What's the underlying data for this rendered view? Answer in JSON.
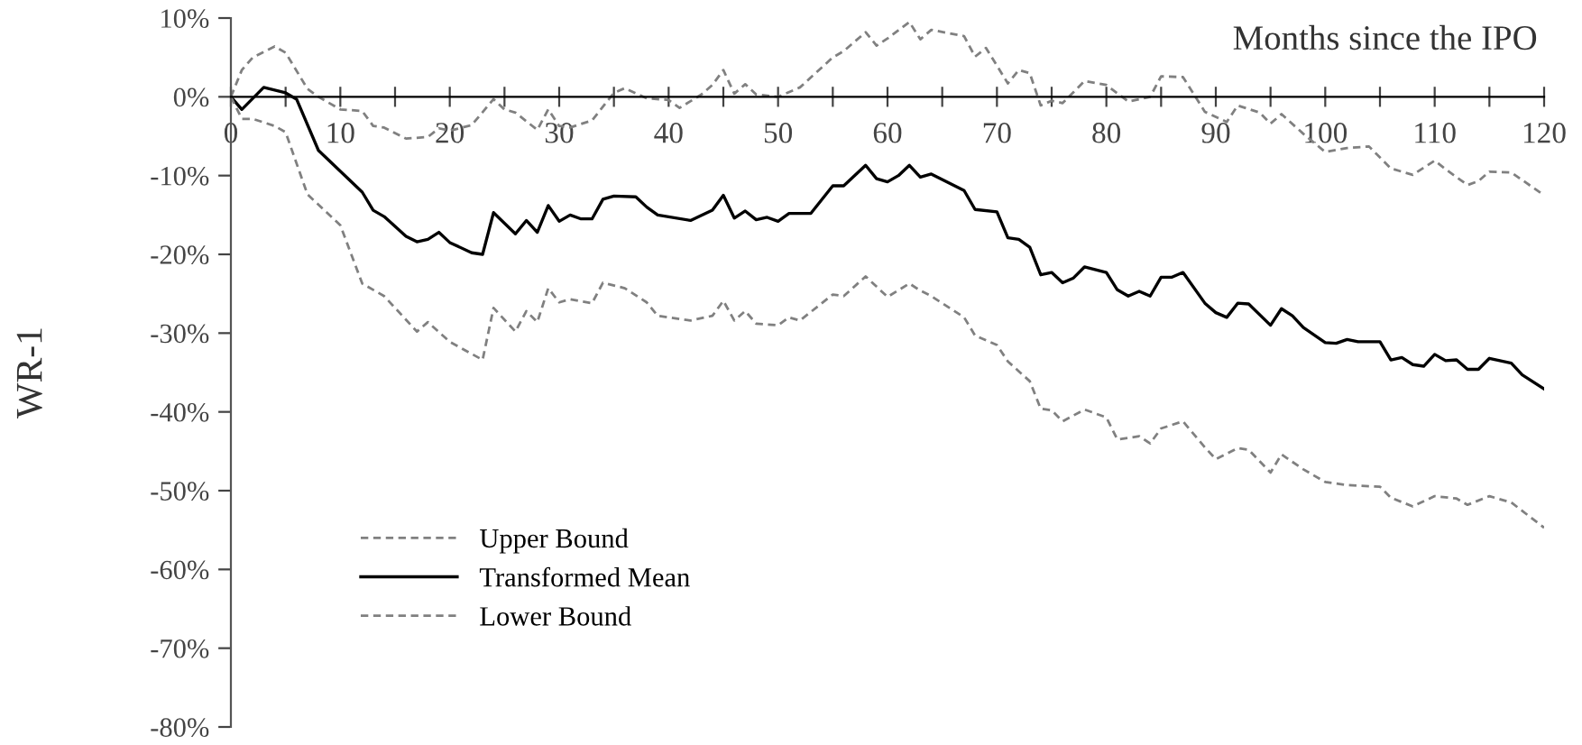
{
  "chart_data": {
    "type": "line",
    "xlabel": "Months since the IPO",
    "ylabel": "WR-1",
    "xlim": [
      0,
      120
    ],
    "ylim": [
      -80,
      10
    ],
    "xticks": [
      0,
      {
        "value": 5,
        "label": null
      },
      10,
      {
        "value": 15,
        "label": null
      },
      20,
      {
        "value": 25,
        "label": null
      },
      30,
      {
        "value": 35,
        "label": null
      },
      40,
      {
        "value": 45,
        "label": null
      },
      50,
      {
        "value": 55,
        "label": null
      },
      60,
      {
        "value": 65,
        "label": null
      },
      70,
      {
        "value": 75,
        "label": null
      },
      80,
      {
        "value": 85,
        "label": null
      },
      90,
      {
        "value": 95,
        "label": null
      },
      100,
      {
        "value": 105,
        "label": null
      },
      110,
      {
        "value": 115,
        "label": null
      },
      120
    ],
    "yticks": [
      {
        "value": 10,
        "label": "10%"
      },
      {
        "value": 0,
        "label": "0%"
      },
      {
        "value": -10,
        "label": "-10%"
      },
      {
        "value": -20,
        "label": "-20%"
      },
      {
        "value": -30,
        "label": "-30%"
      },
      {
        "value": -40,
        "label": "-40%"
      },
      {
        "value": -50,
        "label": "-50%"
      },
      {
        "value": -60,
        "label": "-60%"
      },
      {
        "value": -70,
        "label": "-70%"
      },
      {
        "value": -80,
        "label": "-80%"
      }
    ],
    "grid": false,
    "legend": "bottom left",
    "marker": "none",
    "series": [
      {
        "name": "Upper Bound",
        "color": "#808080",
        "line_style": "dashed",
        "x": [
          0,
          1,
          2,
          4,
          5,
          7,
          8,
          10,
          12,
          13,
          14,
          16,
          18,
          19,
          20,
          22,
          24,
          25,
          26,
          28,
          29,
          30,
          31,
          33,
          35,
          36,
          38,
          40,
          41,
          43,
          44,
          45,
          46,
          47,
          48,
          50,
          52,
          55,
          56,
          58,
          59,
          60,
          62,
          63,
          64,
          67,
          68,
          69,
          71,
          72,
          73,
          74,
          75,
          76,
          78,
          80,
          82,
          84,
          85,
          87,
          89,
          91,
          92,
          94,
          95,
          96,
          98,
          100,
          102,
          104,
          106,
          108,
          110,
          111,
          113,
          114,
          115,
          117,
          120
        ],
        "values": [
          0,
          3.4,
          5,
          6.4,
          5.6,
          1,
          0,
          -1.6,
          -1.8,
          -3.7,
          -3.9,
          -5.3,
          -5.1,
          -4,
          -4.3,
          -3.6,
          -0.3,
          -1.6,
          -2,
          -4.2,
          -1.6,
          -3.7,
          -3.9,
          -3,
          0.5,
          1.1,
          -0.2,
          -0.4,
          -1.4,
          0.3,
          1.5,
          3.4,
          0.4,
          1.6,
          0.3,
          0,
          1.2,
          5,
          5.8,
          8.2,
          6.5,
          7.4,
          9.5,
          7.3,
          8.5,
          7.7,
          5.1,
          6.2,
          1.7,
          3.4,
          3,
          -1.1,
          -0.5,
          -0.8,
          2,
          1.5,
          -0.6,
          0,
          2.6,
          2.5,
          -1.9,
          -3.2,
          -1.1,
          -2,
          -3.4,
          -2.2,
          -4.7,
          -7,
          -6.5,
          -6.3,
          -9.1,
          -9.9,
          -8.1,
          -9.2,
          -11.2,
          -10.7,
          -9.5,
          -9.6,
          -12.5
        ]
      },
      {
        "name": "Transformed Mean",
        "color": "#000000",
        "line_style": "solid",
        "x": [
          0,
          1,
          3,
          5,
          6,
          8,
          12,
          13,
          14,
          16,
          17,
          18,
          19,
          20,
          22,
          23,
          24,
          26,
          27,
          28,
          29,
          30,
          31,
          32,
          33,
          34,
          35,
          37,
          38,
          39,
          42,
          44,
          45,
          46,
          47,
          48,
          49,
          50,
          51,
          53,
          55,
          56,
          58,
          59,
          60,
          61,
          62,
          63,
          64,
          67,
          68,
          70,
          71,
          72,
          73,
          74,
          75,
          76,
          77,
          78,
          80,
          81,
          82,
          83,
          84,
          85,
          86,
          87,
          89,
          90,
          91,
          92,
          93,
          95,
          96,
          97,
          98,
          100,
          101,
          102,
          103,
          105,
          106,
          107,
          108,
          109,
          110,
          111,
          112,
          113,
          114,
          115,
          117,
          118,
          120
        ],
        "values": [
          0,
          -1.6,
          1.2,
          0.5,
          -0.3,
          -6.8,
          -12.1,
          -14.4,
          -15.2,
          -17.7,
          -18.4,
          -18.1,
          -17.2,
          -18.5,
          -19.8,
          -20,
          -14.7,
          -17.4,
          -15.7,
          -17.2,
          -13.8,
          -15.8,
          -15,
          -15.5,
          -15.5,
          -13,
          -12.6,
          -12.7,
          -14,
          -15,
          -15.7,
          -14.4,
          -12.5,
          -15.4,
          -14.5,
          -15.6,
          -15.3,
          -15.8,
          -14.8,
          -14.8,
          -11.3,
          -11.3,
          -8.7,
          -10.4,
          -10.8,
          -10,
          -8.7,
          -10.2,
          -9.8,
          -11.9,
          -14.3,
          -14.6,
          -17.9,
          -18.1,
          -19.1,
          -22.6,
          -22.3,
          -23.6,
          -23,
          -21.6,
          -22.3,
          -24.5,
          -25.3,
          -24.7,
          -25.3,
          -22.9,
          -22.9,
          -22.3,
          -26.2,
          -27.4,
          -28,
          -26.2,
          -26.3,
          -29,
          -26.9,
          -27.8,
          -29.3,
          -31.2,
          -31.3,
          -30.8,
          -31.1,
          -31.1,
          -33.4,
          -33.1,
          -34,
          -34.2,
          -32.7,
          -33.5,
          -33.4,
          -34.6,
          -34.6,
          -33.2,
          -33.8,
          -35.3,
          -37.1
        ]
      },
      {
        "name": "Lower Bound",
        "color": "#808080",
        "line_style": "dashed",
        "x": [
          0,
          1,
          2,
          4,
          5,
          7,
          10,
          12,
          14,
          17,
          18,
          20,
          23,
          24,
          26,
          27,
          28,
          29,
          30,
          31,
          33,
          34,
          36,
          38,
          39,
          42,
          44,
          45,
          46,
          47,
          48,
          50,
          51,
          52,
          55,
          56,
          58,
          60,
          62,
          63,
          64,
          67,
          68,
          70,
          71,
          73,
          74,
          75,
          76,
          78,
          80,
          81,
          83,
          84,
          85,
          87,
          89,
          90,
          92,
          93,
          95,
          96,
          98,
          100,
          102,
          105,
          106,
          108,
          110,
          112,
          113,
          115,
          117,
          120
        ],
        "values": [
          0,
          -2.8,
          -2.8,
          -3.7,
          -4.5,
          -12.4,
          -16.3,
          -23.7,
          -25.3,
          -29.8,
          -28.6,
          -31.1,
          -33.4,
          -26.8,
          -29.8,
          -27.2,
          -28.6,
          -24.3,
          -26.1,
          -25.7,
          -26.2,
          -23.6,
          -24.3,
          -26.1,
          -27.8,
          -28.4,
          -27.8,
          -25.9,
          -28.4,
          -27.2,
          -28.8,
          -29,
          -28,
          -28.4,
          -25.1,
          -25.3,
          -22.8,
          -25.4,
          -23.7,
          -24.6,
          -25.3,
          -28,
          -30.3,
          -31.5,
          -33.6,
          -36.1,
          -39.6,
          -39.8,
          -41.2,
          -39.7,
          -40.7,
          -43.5,
          -43.1,
          -44,
          -42.1,
          -41.2,
          -44.5,
          -46,
          -44.6,
          -44.8,
          -47.7,
          -45.4,
          -47.3,
          -48.9,
          -49.3,
          -49.5,
          -50.9,
          -52,
          -50.7,
          -51,
          -51.8,
          -50.7,
          -51.5,
          -54.7
        ]
      }
    ]
  }
}
